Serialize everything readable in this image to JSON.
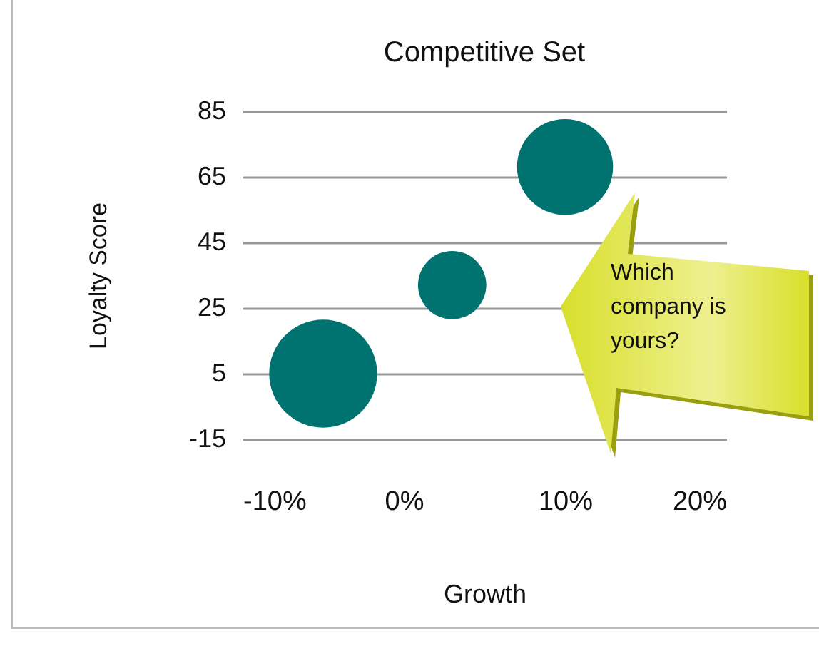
{
  "chart_data": {
    "type": "bubble",
    "title": "Competitive Set",
    "xlabel": "Growth",
    "ylabel": "Loyalty Score",
    "x": [
      -5,
      3,
      10
    ],
    "series": [
      {
        "color": "#007370",
        "values": [
          5,
          32,
          68
        ],
        "sizes": [
          1,
          0.4,
          0.79
        ]
      }
    ],
    "xlim": [
      -10,
      20
    ],
    "xticks": [
      {
        "value": -10,
        "label": "-10%"
      },
      {
        "value": 0,
        "label": "0%"
      },
      {
        "value": 10,
        "label": "10%"
      },
      {
        "value": 20,
        "label": "20%"
      }
    ],
    "ylim": [
      -15,
      85
    ],
    "yticks": [
      -15,
      5,
      25,
      45,
      65,
      85
    ],
    "grid": "y",
    "legend": false,
    "annotations": [
      "Which company is yours?"
    ]
  }
}
